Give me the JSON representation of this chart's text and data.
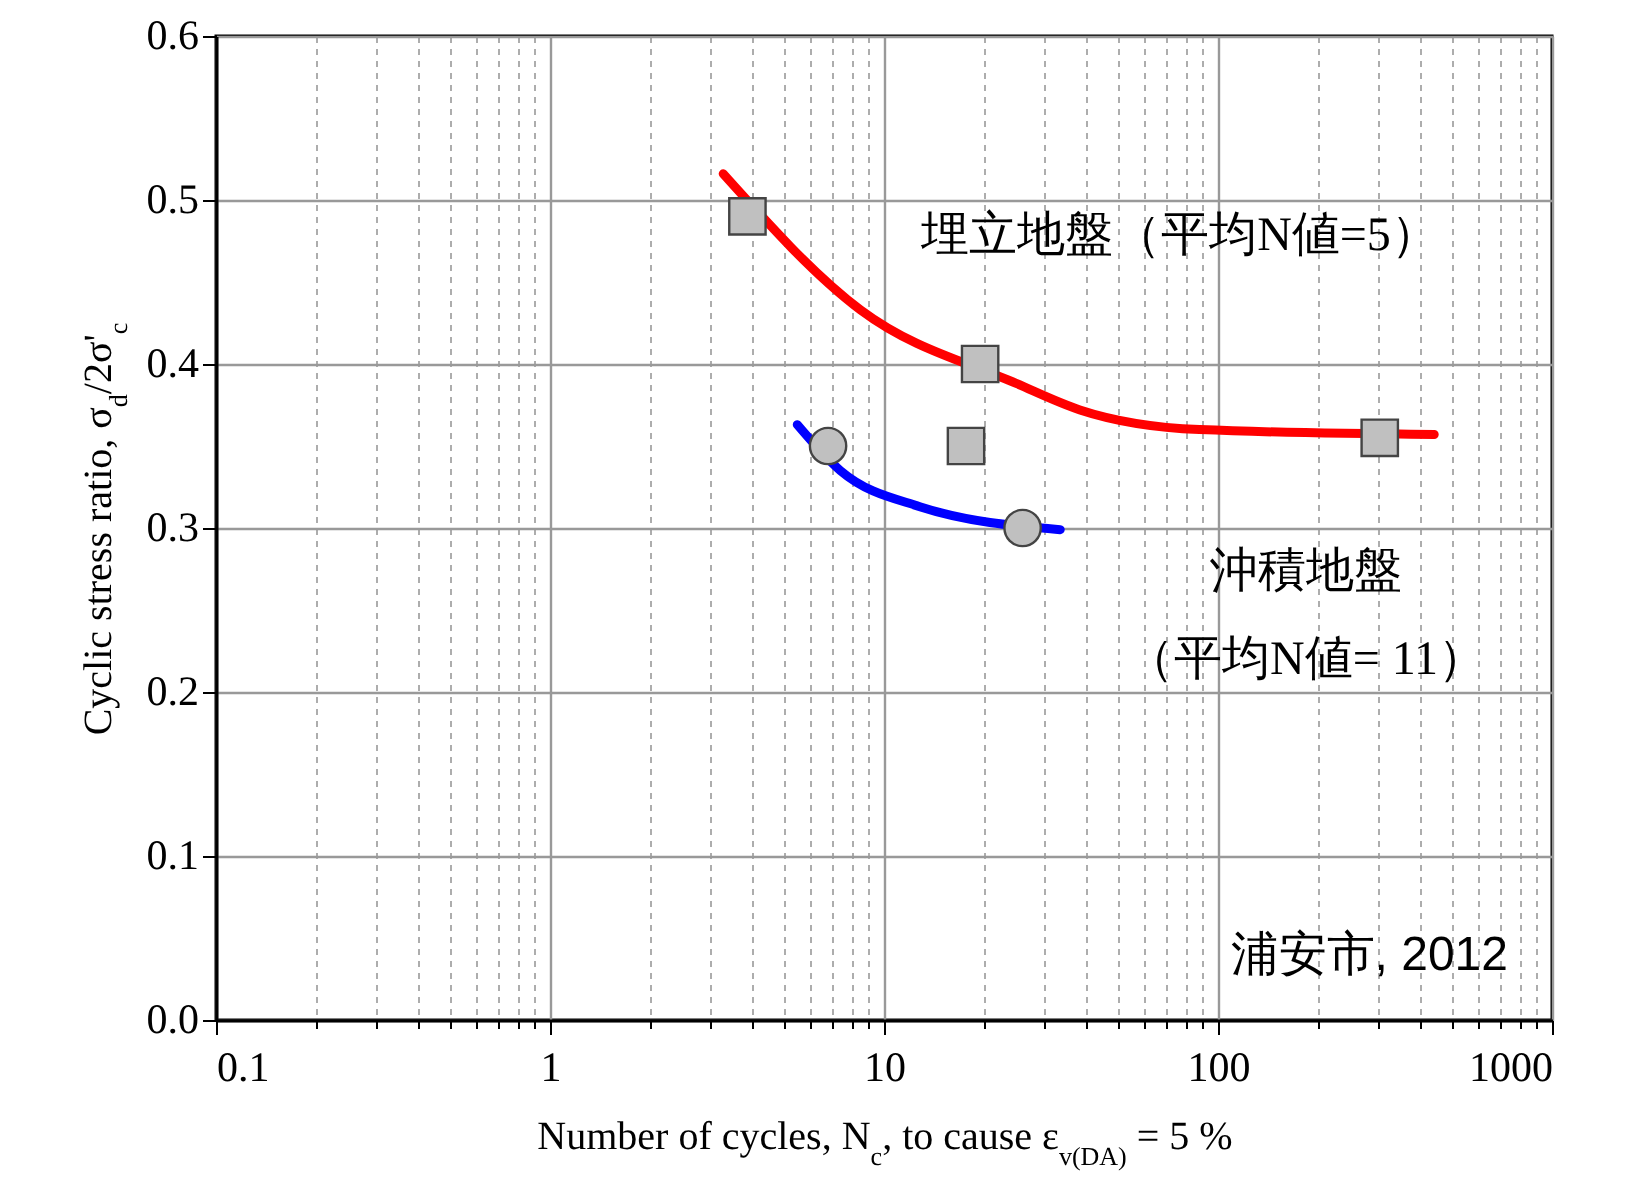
{
  "chart_data": {
    "type": "scatter",
    "xlabel": "Number of cycles, N$_{c}$, to cause ε$_{v(DA)}$ = 5 %",
    "ylabel": "Cyclic stress ratio, σ$_{d}$/2σ'$_{c}$",
    "log": "x",
    "grid": true,
    "xlim": [
      0.1,
      1000
    ],
    "xticks": [
      0.1,
      {
        "value": 0.2,
        "label": null
      },
      {
        "value": 0.3,
        "label": null
      },
      {
        "value": 0.4,
        "label": null
      },
      {
        "value": 0.5,
        "label": null
      },
      {
        "value": 0.6,
        "label": null
      },
      {
        "value": 0.7,
        "label": null
      },
      {
        "value": 0.8,
        "label": null
      },
      {
        "value": 0.9,
        "label": null
      },
      1,
      {
        "value": 2,
        "label": null
      },
      {
        "value": 3,
        "label": null
      },
      {
        "value": 4,
        "label": null
      },
      {
        "value": 5,
        "label": null
      },
      {
        "value": 6,
        "label": null
      },
      {
        "value": 7,
        "label": null
      },
      {
        "value": 8,
        "label": null
      },
      {
        "value": 9,
        "label": null
      },
      10,
      {
        "value": 20,
        "label": null
      },
      {
        "value": 30,
        "label": null
      },
      {
        "value": 40,
        "label": null
      },
      {
        "value": 50,
        "label": null
      },
      {
        "value": 60,
        "label": null
      },
      {
        "value": 70,
        "label": null
      },
      {
        "value": 80,
        "label": null
      },
      {
        "value": 90,
        "label": null
      },
      100,
      {
        "value": 200,
        "label": null
      },
      {
        "value": 300,
        "label": null
      },
      {
        "value": 400,
        "label": null
      },
      {
        "value": 500,
        "label": null
      },
      {
        "value": 600,
        "label": null
      },
      {
        "value": 700,
        "label": null
      },
      {
        "value": 800,
        "label": null
      },
      {
        "value": 900,
        "label": null
      },
      1000
    ],
    "ylim": [
      0,
      0.6
    ],
    "yticks": [
      {
        "value": 0,
        "label": "0.0"
      },
      0.1,
      0.2,
      0.3,
      0.4,
      0.5,
      0.6
    ],
    "series": [
      {
        "type": "line",
        "color": "#ff0000",
        "marker": "none",
        "x": [
          3.3,
          8.5,
          25,
          38.6,
          88,
          444
        ],
        "values": [
          0.516,
          0.433,
          0.388,
          0.372,
          0.36,
          0.357
        ]
      },
      {
        "type": "line",
        "color": "#0000ff",
        "marker": "none",
        "x": [
          5.5,
          7.4,
          12.8,
          33.7
        ],
        "values": [
          0.363,
          0.335,
          0.313,
          0.299
        ]
      },
      {
        "color": "#c0c0c0",
        "marker": "square",
        "x": [
          3.9,
          19.4,
          17.6,
          305
        ],
        "values": [
          0.49,
          0.4,
          0.35,
          0.355
        ]
      },
      {
        "color": "#c0c0c0",
        "marker": "circle",
        "x": [
          6.8,
          26
        ],
        "values": [
          0.35,
          0.3
        ]
      }
    ],
    "annotations": [
      "埋立地盤（平均N値=5）",
      "沖積地盤",
      "（平均N値= 11）",
      "浦安市, 2012"
    ]
  }
}
